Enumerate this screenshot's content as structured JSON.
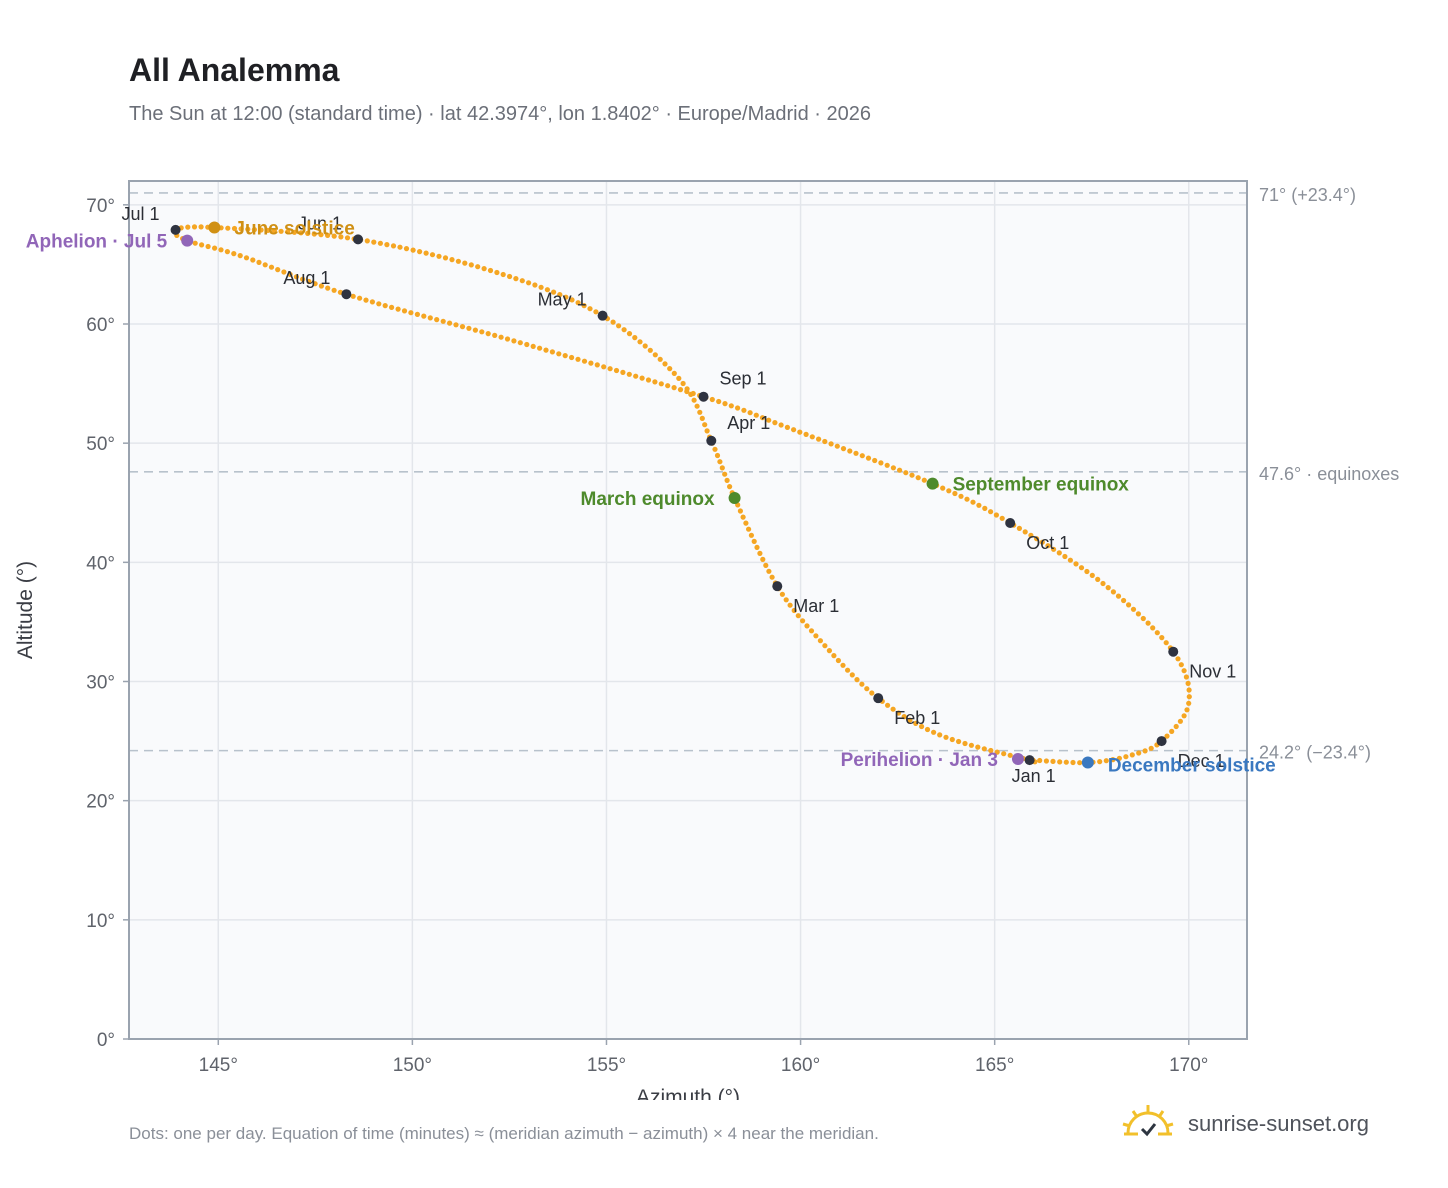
{
  "title": "All Analemma",
  "subtitle": "The Sun at 12:00 (standard time) · lat 42.3974°, lon 1.8402° · Europe/Madrid · 2026",
  "footnote": "Dots: one per day. Equation of time (minutes) ≈ (meridian azimuth − azimuth) × 4 near the meridian.",
  "brand": {
    "name": "sunrise-sunset.org",
    "icon": "sun-check-icon"
  },
  "colors": {
    "curve": "#f5a623",
    "month_dot": "#2f3340",
    "apsis": "#9166b8",
    "equinox": "#4e8a2c",
    "june_solstice": "#d09014",
    "december_solstice": "#3a78c0",
    "grid": "#e3e6eb",
    "plot_bg": "#f9fafc",
    "frame": "#9aa3af",
    "ref_line": "#b8c2cc"
  },
  "chart_data": {
    "type": "scatter",
    "xlabel": "Azimuth (°)",
    "ylabel": "Altitude (°)",
    "xlim": [
      142.7,
      171.5
    ],
    "ylim": [
      0,
      72
    ],
    "xticks": [
      145,
      150,
      155,
      160,
      165,
      170
    ],
    "yticks": [
      0,
      10,
      20,
      30,
      40,
      50,
      60,
      70
    ],
    "x_tick_labels": [
      "145°",
      "150°",
      "155°",
      "160°",
      "165°",
      "170°"
    ],
    "y_tick_labels": [
      "0°",
      "10°",
      "20°",
      "30°",
      "40°",
      "50°",
      "60°",
      "70°"
    ],
    "grid": true,
    "series": [
      {
        "marker": "dot per day",
        "points": [
          {
            "date": "Jan 1",
            "x": 165.9,
            "y": 23.4
          },
          {
            "date": "Jan 20",
            "x": 163.6,
            "y": 25.5
          },
          {
            "date": "Feb 1",
            "x": 162.0,
            "y": 28.6
          },
          {
            "date": "Feb 15",
            "x": 160.6,
            "y": 33.1
          },
          {
            "date": "Mar 1",
            "x": 159.4,
            "y": 38.0
          },
          {
            "date": "Mar 20",
            "x": 158.3,
            "y": 45.4
          },
          {
            "date": "Apr 1",
            "x": 157.7,
            "y": 50.2
          },
          {
            "date": "Apr 15",
            "x": 156.9,
            "y": 55.3
          },
          {
            "date": "May 1",
            "x": 154.9,
            "y": 60.7
          },
          {
            "date": "May 15",
            "x": 152.2,
            "y": 64.3
          },
          {
            "date": "Jun 1",
            "x": 148.6,
            "y": 67.1
          },
          {
            "date": "Jun 21",
            "x": 144.9,
            "y": 68.1
          },
          {
            "date": "Jul 1",
            "x": 143.9,
            "y": 67.9
          },
          {
            "date": "Jul 5",
            "x": 144.2,
            "y": 67.0
          },
          {
            "date": "Jul 15",
            "x": 145.6,
            "y": 65.7
          },
          {
            "date": "Aug 1",
            "x": 148.3,
            "y": 62.5
          },
          {
            "date": "Aug 15",
            "x": 152.6,
            "y": 58.6
          },
          {
            "date": "Sep 1",
            "x": 157.5,
            "y": 53.9
          },
          {
            "date": "Sep 10",
            "x": 159.6,
            "y": 51.4
          },
          {
            "date": "Sep 23",
            "x": 163.4,
            "y": 46.6
          },
          {
            "date": "Oct 1",
            "x": 165.4,
            "y": 43.3
          },
          {
            "date": "Oct 15",
            "x": 167.8,
            "y": 38.2
          },
          {
            "date": "Nov 1",
            "x": 169.6,
            "y": 32.5
          },
          {
            "date": "Nov 15",
            "x": 170.0,
            "y": 28.2
          },
          {
            "date": "Dec 1",
            "x": 169.3,
            "y": 25.0
          },
          {
            "date": "Dec 10",
            "x": 168.5,
            "y": 23.8
          },
          {
            "date": "Dec 21",
            "x": 167.4,
            "y": 23.2
          },
          {
            "date": "Dec 31",
            "x": 166.0,
            "y": 23.4
          }
        ]
      }
    ],
    "month_markers": [
      {
        "label": "Jan 1",
        "x": 165.9,
        "y": 23.4,
        "label_pos": "below"
      },
      {
        "label": "Feb 1",
        "x": 162.0,
        "y": 28.6,
        "label_pos": "below-right"
      },
      {
        "label": "Mar 1",
        "x": 159.4,
        "y": 38.0,
        "label_pos": "below-right"
      },
      {
        "label": "Apr 1",
        "x": 157.7,
        "y": 50.2,
        "label_pos": "above-right"
      },
      {
        "label": "May 1",
        "x": 154.9,
        "y": 60.7,
        "label_pos": "above-left"
      },
      {
        "label": "Jun 1",
        "x": 148.6,
        "y": 67.1,
        "label_pos": "above-left"
      },
      {
        "label": "Jul 1",
        "x": 143.9,
        "y": 67.9,
        "label_pos": "above-left"
      },
      {
        "label": "Aug 1",
        "x": 148.3,
        "y": 62.5,
        "label_pos": "above-left"
      },
      {
        "label": "Sep 1",
        "x": 157.5,
        "y": 53.9,
        "label_pos": "above-right"
      },
      {
        "label": "Oct 1",
        "x": 165.4,
        "y": 43.3,
        "label_pos": "below-right"
      },
      {
        "label": "Nov 1",
        "x": 169.6,
        "y": 32.5,
        "label_pos": "below-right"
      },
      {
        "label": "Dec 1",
        "x": 169.3,
        "y": 25.0,
        "label_pos": "below-right"
      }
    ],
    "annotations": [
      {
        "label": "Aphelion · Jul 5",
        "x": 144.2,
        "y": 67.0,
        "kind": "apsis",
        "label_pos": "left"
      },
      {
        "label": "June solstice",
        "x": 144.9,
        "y": 68.1,
        "kind": "june_solstice",
        "label_pos": "right"
      },
      {
        "label": "March equinox",
        "x": 158.3,
        "y": 45.4,
        "kind": "equinox",
        "label_pos": "left"
      },
      {
        "label": "September equinox",
        "x": 163.4,
        "y": 46.6,
        "kind": "equinox",
        "label_pos": "right"
      },
      {
        "label": "Perihelion · Jan 3",
        "x": 165.6,
        "y": 23.5,
        "kind": "apsis",
        "label_pos": "left"
      },
      {
        "label": "December solstice",
        "x": 167.4,
        "y": 23.2,
        "kind": "december_solstice",
        "label_pos": "below-right"
      }
    ],
    "reference_lines": [
      {
        "y": 71.0,
        "label": "71° (+23.4°)"
      },
      {
        "y": 47.6,
        "label": "47.6° · equinoxes"
      },
      {
        "y": 24.2,
        "label": "24.2° (−23.4°)"
      }
    ]
  }
}
